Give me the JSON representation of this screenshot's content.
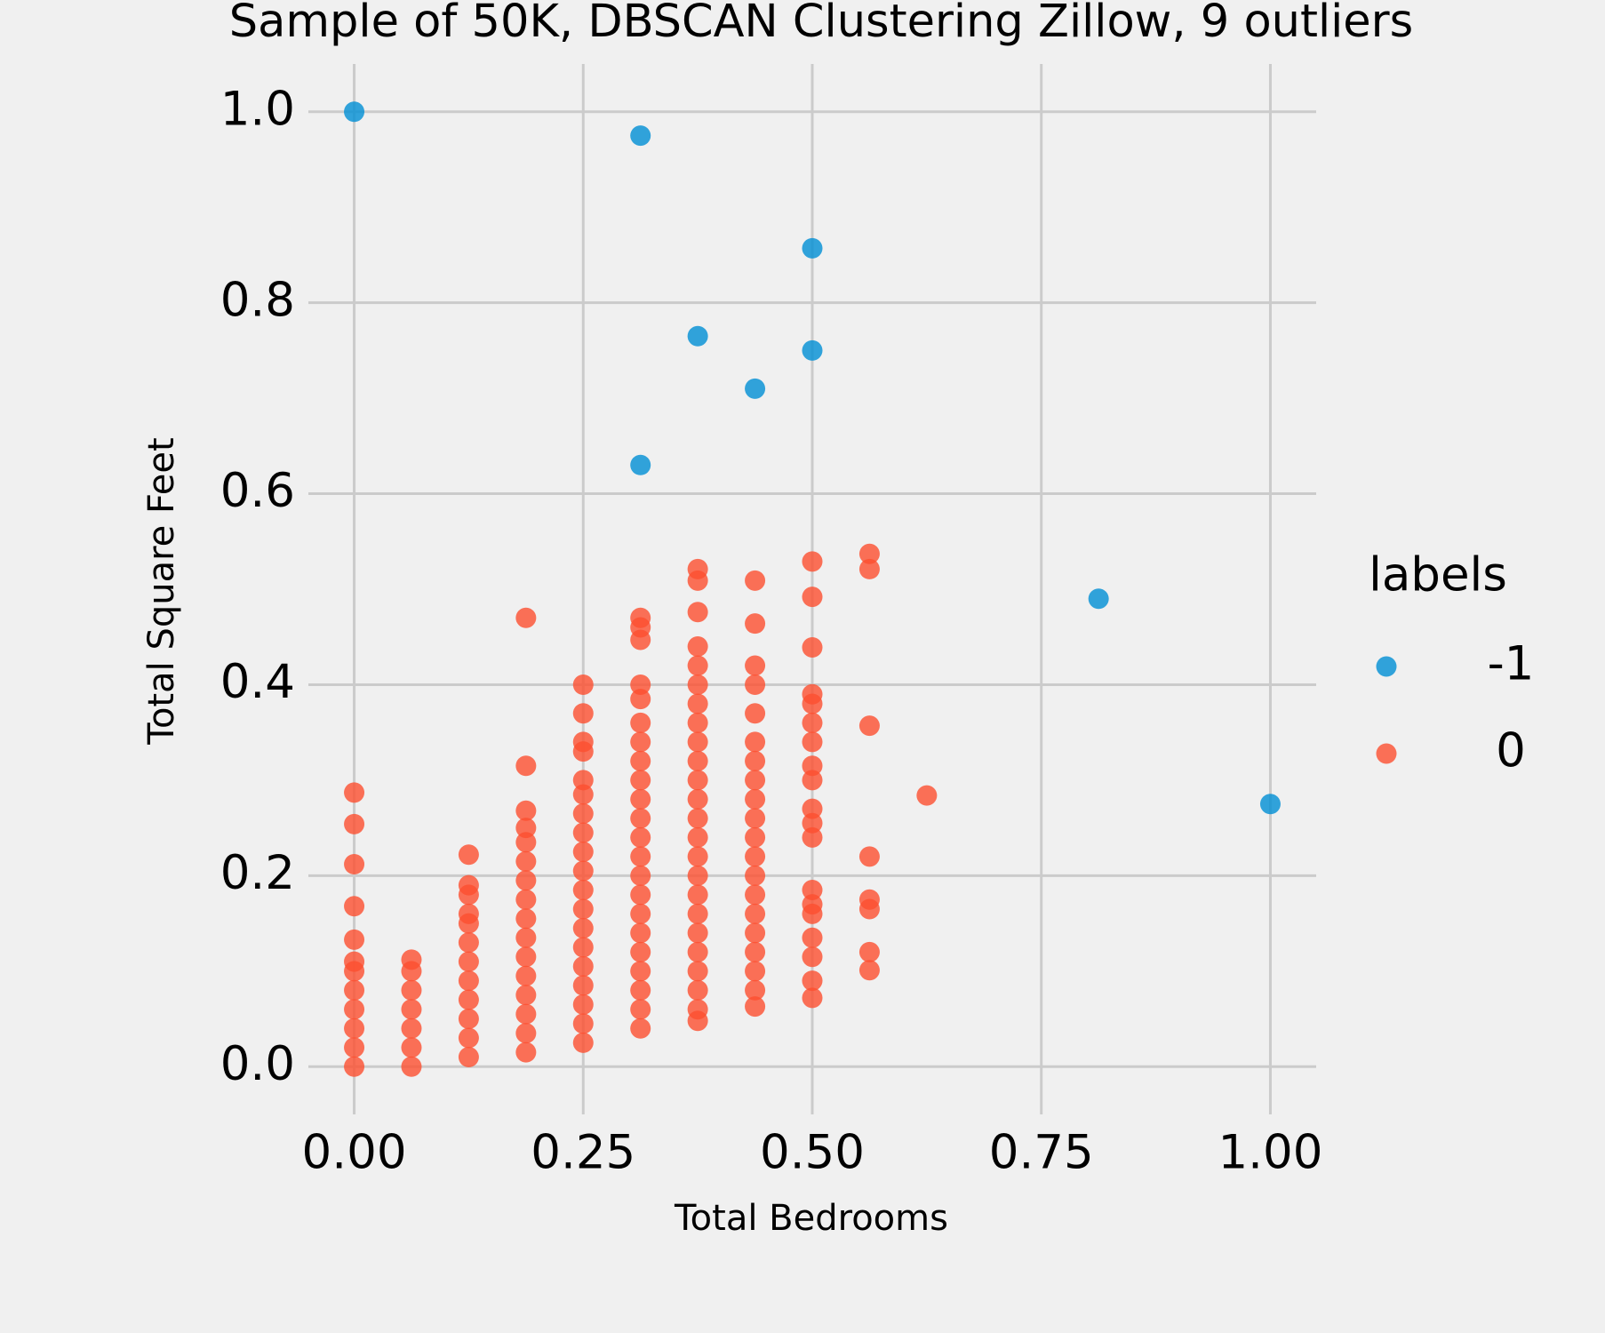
{
  "chart_data": {
    "type": "scatter",
    "title": "Sample of 50K, DBSCAN Clustering Zillow, 9 outliers",
    "x_label": "Total Bedrooms",
    "y_label": "Total Square Feet",
    "legend_title": "labels",
    "legend": "outside right",
    "grid": true,
    "xlim": [
      -0.05,
      1.05
    ],
    "ylim": [
      -0.05,
      1.05
    ],
    "xticks": [
      {
        "value": 0,
        "label": "0.00"
      },
      0.25,
      {
        "value": 0.5,
        "label": "0.50"
      },
      0.75,
      {
        "value": 1,
        "label": "1.00"
      }
    ],
    "yticks": [
      {
        "value": 0,
        "label": "0.0"
      },
      0.2,
      0.4,
      0.6,
      0.8,
      {
        "value": 1,
        "label": "1.0"
      }
    ],
    "series": [
      {
        "name": "-1",
        "color": "#008fd5",
        "x": [
          0,
          0.3125,
          0.5,
          0.375,
          0.4375,
          0.5,
          0.3125,
          0.8125,
          1
        ],
        "y": [
          1,
          0.975,
          0.857,
          0.765,
          0.71,
          0.75,
          0.63,
          0.49,
          0.275
        ]
      },
      {
        "name": "0",
        "color": "#fc4f30",
        "x": [
          0,
          0,
          0,
          0,
          0,
          0,
          0,
          0,
          0,
          0,
          0,
          0,
          0.0625,
          0.0625,
          0.0625,
          0.0625,
          0.0625,
          0.0625,
          0.0625,
          0.125,
          0.125,
          0.125,
          0.125,
          0.125,
          0.125,
          0.125,
          0.125,
          0.125,
          0.125,
          0.125,
          0.125,
          0.1875,
          0.1875,
          0.1875,
          0.1875,
          0.1875,
          0.1875,
          0.1875,
          0.1875,
          0.1875,
          0.1875,
          0.1875,
          0.1875,
          0.1875,
          0.1875,
          0.1875,
          0.1875,
          0.25,
          0.25,
          0.25,
          0.25,
          0.25,
          0.25,
          0.25,
          0.25,
          0.25,
          0.25,
          0.25,
          0.25,
          0.25,
          0.25,
          0.25,
          0.25,
          0.25,
          0.25,
          0.25,
          0.3125,
          0.3125,
          0.3125,
          0.3125,
          0.3125,
          0.3125,
          0.3125,
          0.3125,
          0.3125,
          0.3125,
          0.3125,
          0.3125,
          0.3125,
          0.3125,
          0.3125,
          0.3125,
          0.3125,
          0.3125,
          0.3125,
          0.3125,
          0.3125,
          0.3125,
          0.375,
          0.375,
          0.375,
          0.375,
          0.375,
          0.375,
          0.375,
          0.375,
          0.375,
          0.375,
          0.375,
          0.375,
          0.375,
          0.375,
          0.375,
          0.375,
          0.375,
          0.375,
          0.375,
          0.375,
          0.375,
          0.375,
          0.375,
          0.375,
          0.4375,
          0.4375,
          0.4375,
          0.4375,
          0.4375,
          0.4375,
          0.4375,
          0.4375,
          0.4375,
          0.4375,
          0.4375,
          0.4375,
          0.4375,
          0.4375,
          0.4375,
          0.4375,
          0.4375,
          0.4375,
          0.4375,
          0.4375,
          0.5,
          0.5,
          0.5,
          0.5,
          0.5,
          0.5,
          0.5,
          0.5,
          0.5,
          0.5,
          0.5,
          0.5,
          0.5,
          0.5,
          0.5,
          0.5,
          0.5,
          0.5,
          0.5,
          0.5625,
          0.5625,
          0.5625,
          0.5625,
          0.5625,
          0.5625,
          0.5625,
          0.5625,
          0.625
        ],
        "y": [
          0,
          0.02,
          0.04,
          0.06,
          0.08,
          0.1,
          0.11,
          0.133,
          0.168,
          0.212,
          0.254,
          0.287,
          0,
          0.02,
          0.04,
          0.06,
          0.08,
          0.1,
          0.112,
          0.01,
          0.03,
          0.05,
          0.07,
          0.09,
          0.11,
          0.13,
          0.15,
          0.16,
          0.18,
          0.19,
          0.222,
          0.015,
          0.035,
          0.055,
          0.075,
          0.095,
          0.115,
          0.135,
          0.155,
          0.175,
          0.195,
          0.215,
          0.235,
          0.25,
          0.268,
          0.315,
          0.47,
          0.025,
          0.045,
          0.065,
          0.085,
          0.105,
          0.125,
          0.145,
          0.165,
          0.185,
          0.205,
          0.225,
          0.245,
          0.265,
          0.285,
          0.3,
          0.33,
          0.34,
          0.37,
          0.4,
          0.04,
          0.06,
          0.08,
          0.1,
          0.12,
          0.14,
          0.16,
          0.18,
          0.2,
          0.22,
          0.24,
          0.26,
          0.28,
          0.3,
          0.32,
          0.34,
          0.36,
          0.385,
          0.4,
          0.447,
          0.46,
          0.47,
          0.048,
          0.06,
          0.08,
          0.1,
          0.12,
          0.14,
          0.16,
          0.18,
          0.2,
          0.22,
          0.24,
          0.26,
          0.28,
          0.3,
          0.32,
          0.34,
          0.36,
          0.38,
          0.4,
          0.42,
          0.44,
          0.476,
          0.509,
          0.521,
          0.063,
          0.08,
          0.1,
          0.12,
          0.14,
          0.16,
          0.18,
          0.2,
          0.22,
          0.24,
          0.26,
          0.28,
          0.3,
          0.32,
          0.34,
          0.37,
          0.4,
          0.42,
          0.464,
          0.509,
          0.072,
          0.09,
          0.115,
          0.135,
          0.16,
          0.17,
          0.185,
          0.24,
          0.255,
          0.27,
          0.3,
          0.315,
          0.34,
          0.36,
          0.38,
          0.39,
          0.439,
          0.492,
          0.529,
          0.101,
          0.12,
          0.165,
          0.175,
          0.22,
          0.357,
          0.521,
          0.537,
          0.284
        ]
      }
    ]
  }
}
